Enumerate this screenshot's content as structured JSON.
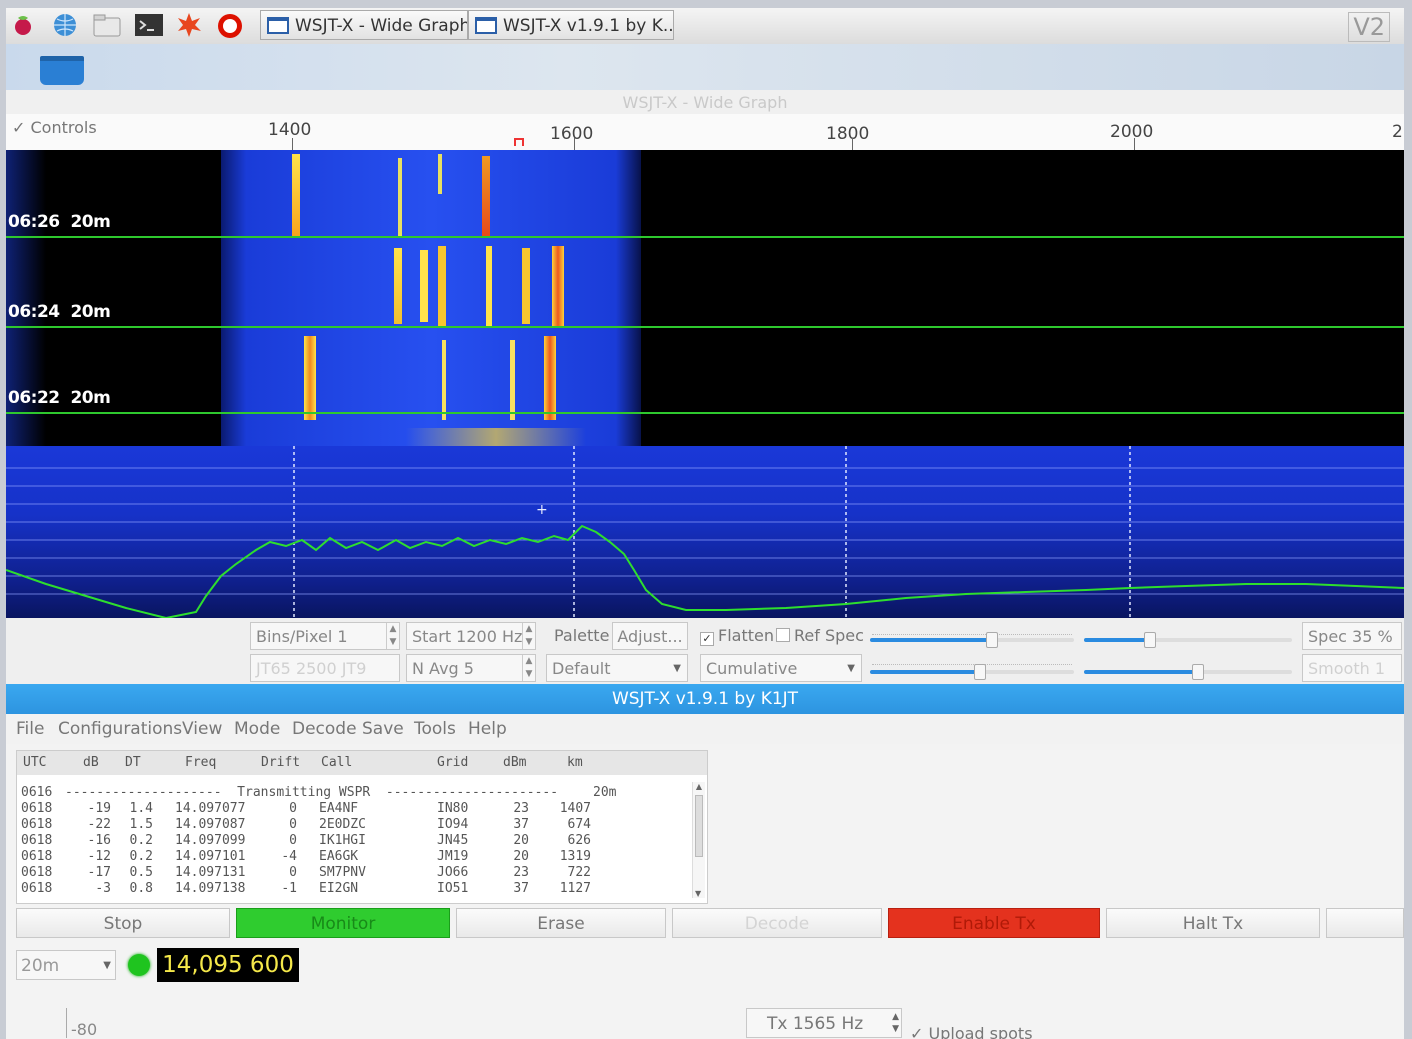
{
  "taskbar": {
    "tasks": [
      "WSJT-X - Wide Graph",
      "WSJT-X   v1.9.1   by K..."
    ],
    "corner_badge": "V2"
  },
  "wide_graph": {
    "title": "WSJT-X - Wide Graph",
    "controls_label": "Controls",
    "freq_labels": [
      "1400",
      "1600",
      "1800",
      "2000",
      "2"
    ],
    "timestamps": [
      {
        "time": "06:26",
        "band": "20m"
      },
      {
        "time": "06:24",
        "band": "20m"
      },
      {
        "time": "06:22",
        "band": "20m"
      }
    ]
  },
  "graph_controls": {
    "bins_per_pixel": "Bins/Pixel  1",
    "start_hz": "Start 1200 Hz",
    "palette_label": "Palette",
    "adjust_button": "Adjust...",
    "flatten_label": "Flatten",
    "flatten_checked": true,
    "ref_spec_label": "Ref Spec",
    "ref_spec_checked": false,
    "spec_label": "Spec 35 %",
    "jt65_label": "JT65  2500  JT9",
    "n_avg": "N Avg 5",
    "palette_value": "Default",
    "spectrum_mode": "Cumulative",
    "smooth_label": "Smooth  1",
    "sliders": [
      0.57,
      0.3,
      0.54,
      0.54
    ]
  },
  "main_window": {
    "title": "WSJT-X   v1.9.1   by K1JT",
    "menu": [
      "File",
      "Configurations",
      "View",
      "Mode",
      "Decode",
      "Save",
      "Tools",
      "Help"
    ],
    "columns": [
      "UTC",
      "dB",
      "DT",
      "Freq",
      "Drift",
      "Call",
      "Grid",
      "dBm",
      "km"
    ],
    "separator": {
      "utc": "0616",
      "text": "--------------------  Transmitting WSPR  ----------------------",
      "band": "20m"
    },
    "rows": [
      {
        "utc": "0618",
        "db": "-19",
        "dt": "1.4",
        "freq": "14.097077",
        "drift": "0",
        "call": "EA4NF",
        "grid": "IN80",
        "dbm": "23",
        "km": "1407"
      },
      {
        "utc": "0618",
        "db": "-22",
        "dt": "1.5",
        "freq": "14.097087",
        "drift": "0",
        "call": "2E0DZC",
        "grid": "IO94",
        "dbm": "37",
        "km": "674"
      },
      {
        "utc": "0618",
        "db": "-16",
        "dt": "0.2",
        "freq": "14.097099",
        "drift": "0",
        "call": "IK1HGI",
        "grid": "JN45",
        "dbm": "20",
        "km": "626"
      },
      {
        "utc": "0618",
        "db": "-12",
        "dt": "0.2",
        "freq": "14.097101",
        "drift": "-4",
        "call": "EA6GK",
        "grid": "JM19",
        "dbm": "20",
        "km": "1319"
      },
      {
        "utc": "0618",
        "db": "-17",
        "dt": "0.5",
        "freq": "14.097131",
        "drift": "0",
        "call": "SM7PNV",
        "grid": "JO66",
        "dbm": "23",
        "km": "722"
      },
      {
        "utc": "0618",
        "db": "-3",
        "dt": "0.8",
        "freq": "14.097138",
        "drift": "-1",
        "call": "EI2GN",
        "grid": "IO51",
        "dbm": "37",
        "km": "1127"
      }
    ],
    "buttons": {
      "stop": "Stop",
      "monitor": "Monitor",
      "erase": "Erase",
      "decode": "Decode",
      "enable_tx": "Enable Tx",
      "halt_tx": "Halt Tx"
    },
    "band": "20m",
    "dial_freq": "14,095 600",
    "meter_label": "-80",
    "tx_freq": "Tx  1565  Hz",
    "upload_spots_label": "Upload spots",
    "upload_spots_checked": true
  },
  "colors": {
    "accent_title": "#2d94e0",
    "monitor_green": "#2fcc2f",
    "enable_tx_red": "#e4321e",
    "trace_green": "#2ec82e",
    "freq_display_text": "#f5e84a"
  }
}
